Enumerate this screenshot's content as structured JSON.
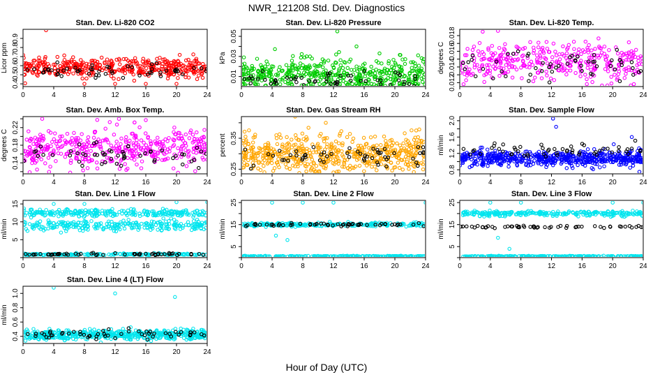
{
  "figure": {
    "title": "NWR_121208  Std. Dev. Diagnostics",
    "xlabel": "Hour of Day (UTC)"
  },
  "chart_data": [
    {
      "id": "co2",
      "type": "scatter",
      "title": "Stan. Dev. Li-820 CO2",
      "ylabel": "Licor ppm",
      "xlim": [
        0,
        24
      ],
      "ylim": [
        0.37,
        1.0
      ],
      "yticks": [
        0.4,
        0.5,
        0.6,
        0.7,
        0.8,
        0.9
      ],
      "ytick_labels": [
        "0.4",
        "0.5",
        "0.6",
        "0.7",
        "0.8",
        "0.9"
      ],
      "xticks": [
        0,
        4,
        8,
        12,
        16,
        20,
        24
      ],
      "series": [
        {
          "name": "all",
          "color": "#ff0000",
          "mean": 0.58,
          "spread": 0.05,
          "count": 420
        },
        {
          "name": "highlight",
          "color": "#000000",
          "mean": 0.54,
          "spread": 0.04,
          "count": 55
        }
      ],
      "outliers": [
        [
          3,
          0.99
        ],
        [
          8,
          0.4
        ],
        [
          12,
          0.4
        ],
        [
          16,
          0.4
        ],
        [
          20,
          0.4
        ]
      ]
    },
    {
      "id": "pressure",
      "type": "scatter",
      "title": "Stan. Dev. Li-820 Pressure",
      "ylabel": "kPa",
      "xlim": [
        0,
        24
      ],
      "ylim": [
        0,
        0.057
      ],
      "yticks": [
        0.01,
        0.02,
        0.03,
        0.04,
        0.05
      ],
      "ytick_labels": [
        "0.01",
        "",
        "0.03",
        "",
        "0.05"
      ],
      "xticks": [
        0,
        4,
        8,
        12,
        16,
        20,
        24
      ],
      "series": [
        {
          "name": "all",
          "color": "#00cc00",
          "mean": 0.012,
          "spread": 0.008,
          "count": 480
        },
        {
          "name": "highlight",
          "color": "#000000",
          "mean": 0.006,
          "spread": 0.004,
          "count": 55
        }
      ],
      "outliers": [
        [
          12.5,
          0.055
        ],
        [
          8.5,
          0.03
        ],
        [
          15,
          0.04
        ],
        [
          18,
          0.033
        ],
        [
          21,
          0.027
        ]
      ]
    },
    {
      "id": "temp",
      "type": "scatter",
      "title": "Stan. Dev. Li-820 Temp.",
      "ylabel": "degrees C",
      "xlim": [
        0,
        24
      ],
      "ylim": [
        0.0115,
        0.0188
      ],
      "yticks": [
        0.012,
        0.013,
        0.014,
        0.015,
        0.016,
        0.017,
        0.018
      ],
      "ytick_labels": [
        "0.012",
        "",
        "0.014",
        "",
        "0.016",
        "",
        "0.018"
      ],
      "xticks": [
        0,
        4,
        8,
        12,
        16,
        20,
        24
      ],
      "series": [
        {
          "name": "all",
          "color": "#ff00ff",
          "mean": 0.0145,
          "spread": 0.0012,
          "count": 360
        },
        {
          "name": "highlight",
          "color": "#000000",
          "mean": 0.0142,
          "spread": 0.001,
          "count": 55
        }
      ],
      "outliers": [
        [
          3,
          0.0185
        ],
        [
          5,
          0.0186
        ],
        [
          0.5,
          0.0118
        ]
      ]
    },
    {
      "id": "boxtemp",
      "type": "scatter",
      "title": "Stan. Dev. Amb. Box Temp.",
      "ylabel": "degrees C",
      "xlim": [
        0,
        24
      ],
      "ylim": [
        0.115,
        0.245
      ],
      "yticks": [
        0.12,
        0.14,
        0.16,
        0.18,
        0.2,
        0.22,
        0.24
      ],
      "ytick_labels": [
        "",
        "0.14",
        "",
        "0.18",
        "",
        "0.22",
        ""
      ],
      "xticks": [
        0,
        4,
        8,
        12,
        16,
        20,
        24
      ],
      "series": [
        {
          "name": "all",
          "color": "#ff00ff",
          "mean": 0.172,
          "spread": 0.022,
          "count": 440
        },
        {
          "name": "highlight",
          "color": "#000000",
          "mean": 0.155,
          "spread": 0.015,
          "count": 55
        }
      ],
      "outliers": [
        [
          2.5,
          0.24
        ],
        [
          12.5,
          0.24
        ],
        [
          16,
          0.237
        ]
      ]
    },
    {
      "id": "rh",
      "type": "scatter",
      "title": "Stan. Dev. Gas Stream RH",
      "ylabel": "percent",
      "xlim": [
        0,
        24
      ],
      "ylim": [
        0.235,
        0.42
      ],
      "yticks": [
        0.25,
        0.3,
        0.35,
        0.4
      ],
      "ytick_labels": [
        "0.25",
        "",
        "0.35",
        ""
      ],
      "xticks": [
        0,
        4,
        8,
        12,
        16,
        20,
        24
      ],
      "series": [
        {
          "name": "all",
          "color": "#ffa500",
          "mean": 0.3,
          "spread": 0.03,
          "count": 560
        },
        {
          "name": "highlight",
          "color": "#000000",
          "mean": 0.29,
          "spread": 0.02,
          "count": 55
        }
      ],
      "outliers": [
        [
          7,
          0.42
        ],
        [
          11,
          0.4
        ],
        [
          3,
          0.24
        ]
      ]
    },
    {
      "id": "sampleflow",
      "type": "scatter",
      "title": "Stan. Dev. Sample Flow",
      "ylabel": "ml/min",
      "xlim": [
        0,
        24
      ],
      "ylim": [
        0.7,
        2.1
      ],
      "yticks": [
        0.8,
        1.0,
        1.2,
        1.4,
        1.6,
        1.8,
        2.0
      ],
      "ytick_labels": [
        "0.8",
        "",
        "1.2",
        "",
        "1.6",
        "",
        "2.0"
      ],
      "xticks": [
        0,
        4,
        8,
        12,
        16,
        20,
        24
      ],
      "series": [
        {
          "name": "all",
          "color": "#0000ff",
          "mean": 1.08,
          "spread": 0.09,
          "count": 560
        },
        {
          "name": "highlight",
          "color": "#000000",
          "mean": 1.28,
          "spread": 0.07,
          "count": 55
        }
      ],
      "outliers": [
        [
          12.2,
          2.05
        ],
        [
          12.6,
          1.85
        ],
        [
          22.5,
          1.6
        ],
        [
          23.5,
          0.75
        ]
      ]
    },
    {
      "id": "line1",
      "type": "scatter",
      "title": "Stan. Dev. Line 1 Flow",
      "ylabel": "ml/min",
      "xlim": [
        0,
        24
      ],
      "ylim": [
        0,
        16
      ],
      "yticks": [
        0,
        5,
        10,
        15
      ],
      "ytick_labels": [
        "",
        "5",
        "10",
        "15"
      ],
      "xticks": [
        0,
        4,
        8,
        12,
        16,
        20,
        24
      ],
      "series": [
        {
          "name": "band-high",
          "color": "#00e5ee",
          "mean": 12.5,
          "spread": 0.5,
          "count": 260
        },
        {
          "name": "band-mid",
          "color": "#00e5ee",
          "mean": 9.0,
          "spread": 0.7,
          "count": 260
        },
        {
          "name": "band-low",
          "color": "#00e5ee",
          "mean": 0.9,
          "spread": 0.15,
          "count": 180
        },
        {
          "name": "highlight",
          "color": "#000000",
          "mean": 1.0,
          "spread": 0.15,
          "count": 55
        }
      ],
      "outliers": [
        [
          4,
          15
        ],
        [
          8,
          15
        ],
        [
          20,
          15.5
        ],
        [
          24,
          15.5
        ]
      ]
    },
    {
      "id": "line2",
      "type": "scatter",
      "title": "Stan. Dev. Line 2 Flow",
      "ylabel": "ml/min",
      "xlim": [
        0,
        24
      ],
      "ylim": [
        0,
        26
      ],
      "yticks": [
        0,
        5,
        10,
        15,
        20,
        25
      ],
      "ytick_labels": [
        "",
        "5",
        "",
        "15",
        "",
        "25"
      ],
      "xticks": [
        0,
        4,
        8,
        12,
        16,
        20,
        24
      ],
      "series": [
        {
          "name": "band-high",
          "color": "#00e5ee",
          "mean": 15.0,
          "spread": 0.4,
          "count": 240
        },
        {
          "name": "band-low",
          "color": "#00e5ee",
          "mean": 0.6,
          "spread": 0.1,
          "count": 240
        },
        {
          "name": "highlight",
          "color": "#000000",
          "mean": 15.0,
          "spread": 0.3,
          "count": 55
        }
      ],
      "outliers": [
        [
          4,
          25
        ],
        [
          8,
          25
        ],
        [
          12,
          25
        ],
        [
          24,
          25
        ],
        [
          6,
          8
        ],
        [
          4.5,
          10
        ]
      ]
    },
    {
      "id": "line3",
      "type": "scatter",
      "title": "Stan. Dev. Line 3 Flow",
      "ylabel": "ml/min",
      "xlim": [
        0,
        24
      ],
      "ylim": [
        0,
        26
      ],
      "yticks": [
        0,
        5,
        10,
        15,
        20,
        25
      ],
      "ytick_labels": [
        "",
        "5",
        "",
        "15",
        "",
        "25"
      ],
      "xticks": [
        0,
        4,
        8,
        12,
        16,
        20,
        24
      ],
      "series": [
        {
          "name": "band-high",
          "color": "#00e5ee",
          "mean": 20.0,
          "spread": 0.6,
          "count": 260
        },
        {
          "name": "band-low",
          "color": "#00e5ee",
          "mean": 0.6,
          "spread": 0.1,
          "count": 240
        },
        {
          "name": "highlight",
          "color": "#000000",
          "mean": 14.0,
          "spread": 0.3,
          "count": 55
        }
      ],
      "outliers": [
        [
          4,
          25
        ],
        [
          8,
          25
        ],
        [
          20,
          25
        ],
        [
          24,
          25
        ],
        [
          5,
          9
        ],
        [
          6.5,
          4
        ]
      ]
    },
    {
      "id": "line4",
      "type": "scatter",
      "title": "Stan. Dev. Line 4 (LT) Flow",
      "ylabel": "ml/min",
      "xlim": [
        0,
        24
      ],
      "ylim": [
        0.3,
        1.1
      ],
      "yticks": [
        0.4,
        0.6,
        0.8,
        1.0
      ],
      "ytick_labels": [
        "0.4",
        "0.6",
        "0.8",
        "1.0"
      ],
      "xticks": [
        0,
        4,
        8,
        12,
        16,
        20,
        24
      ],
      "series": [
        {
          "name": "all",
          "color": "#00e5ee",
          "mean": 0.42,
          "spread": 0.035,
          "count": 520
        },
        {
          "name": "highlight",
          "color": "#000000",
          "mean": 0.42,
          "spread": 0.03,
          "count": 55
        }
      ],
      "outliers": [
        [
          4,
          1.08
        ],
        [
          12,
          1.0
        ],
        [
          19.8,
          0.95
        ]
      ]
    }
  ]
}
